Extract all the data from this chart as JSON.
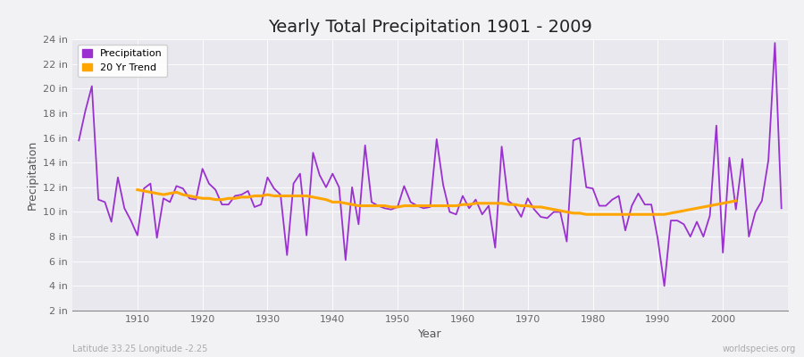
{
  "title": "Yearly Total Precipitation 1901 - 2009",
  "xlabel": "Year",
  "ylabel": "Precipitation",
  "subtitle_left": "Latitude 33.25 Longitude -2.25",
  "subtitle_right": "worldspecies.org",
  "precip_color": "#9B30D0",
  "trend_color": "#FFA500",
  "plot_bg_color": "#E8E8EE",
  "fig_bg_color": "#F2F2F5",
  "years": [
    1901,
    1902,
    1903,
    1904,
    1905,
    1906,
    1907,
    1908,
    1909,
    1910,
    1911,
    1912,
    1913,
    1914,
    1915,
    1916,
    1917,
    1918,
    1919,
    1920,
    1921,
    1922,
    1923,
    1924,
    1925,
    1926,
    1927,
    1928,
    1929,
    1930,
    1931,
    1932,
    1933,
    1934,
    1935,
    1936,
    1937,
    1938,
    1939,
    1940,
    1941,
    1942,
    1943,
    1944,
    1945,
    1946,
    1947,
    1948,
    1949,
    1950,
    1951,
    1952,
    1953,
    1954,
    1955,
    1956,
    1957,
    1958,
    1959,
    1960,
    1961,
    1962,
    1963,
    1964,
    1965,
    1966,
    1967,
    1968,
    1969,
    1970,
    1971,
    1972,
    1973,
    1974,
    1975,
    1976,
    1977,
    1978,
    1979,
    1980,
    1981,
    1982,
    1983,
    1984,
    1985,
    1986,
    1987,
    1988,
    1989,
    1990,
    1991,
    1992,
    1993,
    1994,
    1995,
    1996,
    1997,
    1998,
    1999,
    2000,
    2001,
    2002,
    2003,
    2004,
    2005,
    2006,
    2007,
    2008,
    2009
  ],
  "precip": [
    15.8,
    18.2,
    20.2,
    11.0,
    10.8,
    9.2,
    12.8,
    10.3,
    9.3,
    8.1,
    11.9,
    12.3,
    7.9,
    11.1,
    10.8,
    12.1,
    11.9,
    11.1,
    11.0,
    13.5,
    12.3,
    11.8,
    10.6,
    10.6,
    11.3,
    11.4,
    11.7,
    10.4,
    10.6,
    12.8,
    11.9,
    11.4,
    6.5,
    12.3,
    13.1,
    8.1,
    14.8,
    13.0,
    12.0,
    13.1,
    12.0,
    6.1,
    12.0,
    9.0,
    15.4,
    10.8,
    10.5,
    10.3,
    10.2,
    10.4,
    12.1,
    10.8,
    10.5,
    10.3,
    10.4,
    15.9,
    12.2,
    10.0,
    9.8,
    11.3,
    10.3,
    11.0,
    9.8,
    10.5,
    7.1,
    15.3,
    10.9,
    10.5,
    9.6,
    11.1,
    10.2,
    9.6,
    9.5,
    10.0,
    10.0,
    7.6,
    15.8,
    16.0,
    12.0,
    11.9,
    10.5,
    10.5,
    11.0,
    11.3,
    8.5,
    10.5,
    11.5,
    10.6,
    10.6,
    7.8,
    4.0,
    9.3,
    9.3,
    9.0,
    8.0,
    9.2,
    8.0,
    9.7,
    17.0,
    6.7,
    14.4,
    10.2,
    14.3,
    8.0,
    10.0,
    10.9,
    14.2,
    23.7,
    10.3
  ],
  "trend": [
    null,
    null,
    null,
    null,
    null,
    null,
    null,
    null,
    null,
    11.8,
    11.7,
    11.6,
    11.5,
    11.4,
    11.5,
    11.6,
    11.4,
    11.3,
    11.2,
    11.1,
    11.1,
    11.0,
    11.0,
    11.1,
    11.1,
    11.2,
    11.2,
    11.3,
    11.3,
    11.4,
    11.3,
    11.3,
    11.3,
    11.3,
    11.3,
    11.3,
    11.2,
    11.1,
    11.0,
    10.8,
    10.8,
    10.7,
    10.6,
    10.5,
    10.5,
    10.5,
    10.5,
    10.5,
    10.4,
    10.4,
    10.5,
    10.5,
    10.5,
    10.5,
    10.5,
    10.5,
    10.5,
    10.5,
    10.5,
    10.6,
    10.6,
    10.7,
    10.7,
    10.7,
    10.7,
    10.7,
    10.6,
    10.6,
    10.5,
    10.5,
    10.4,
    10.4,
    10.3,
    10.2,
    10.1,
    10.0,
    9.9,
    9.9,
    9.8,
    9.8,
    9.8,
    9.8,
    9.8,
    9.8,
    9.8,
    9.8,
    9.8,
    9.8,
    9.8,
    9.8,
    9.8,
    9.9,
    10.0,
    10.1,
    10.2,
    10.3,
    10.4,
    10.5,
    10.6,
    10.7,
    10.8,
    10.9,
    null,
    null,
    null,
    null,
    null,
    null
  ],
  "ylim": [
    2,
    24
  ],
  "yticks": [
    2,
    4,
    6,
    8,
    10,
    12,
    14,
    16,
    18,
    20,
    22,
    24
  ],
  "ytick_labels": [
    "2 in",
    "4 in",
    "6 in",
    "8 in",
    "10 in",
    "12 in",
    "14 in",
    "16 in",
    "18 in",
    "20 in",
    "22 in",
    "24 in"
  ],
  "xlim_min": 1900,
  "xlim_max": 2010,
  "x_ticks": [
    1910,
    1920,
    1930,
    1940,
    1950,
    1960,
    1970,
    1980,
    1990,
    2000
  ],
  "grid_color": "#FFFFFF",
  "title_fontsize": 14,
  "axis_label_fontsize": 9,
  "tick_fontsize": 8,
  "legend_fontsize": 8,
  "precip_linewidth": 1.3,
  "trend_linewidth": 2.2
}
